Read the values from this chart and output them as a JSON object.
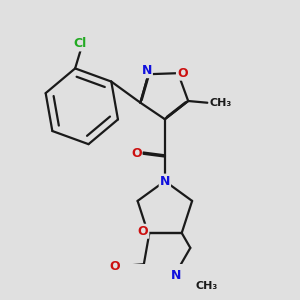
{
  "bg_color": "#e0e0e0",
  "bond_color": "#1a1a1a",
  "bond_width": 1.6,
  "atom_colors": {
    "C": "#1a1a1a",
    "N": "#1010dd",
    "O": "#cc1010",
    "Cl": "#22aa22"
  },
  "figsize": [
    3.0,
    3.0
  ],
  "dpi": 100
}
